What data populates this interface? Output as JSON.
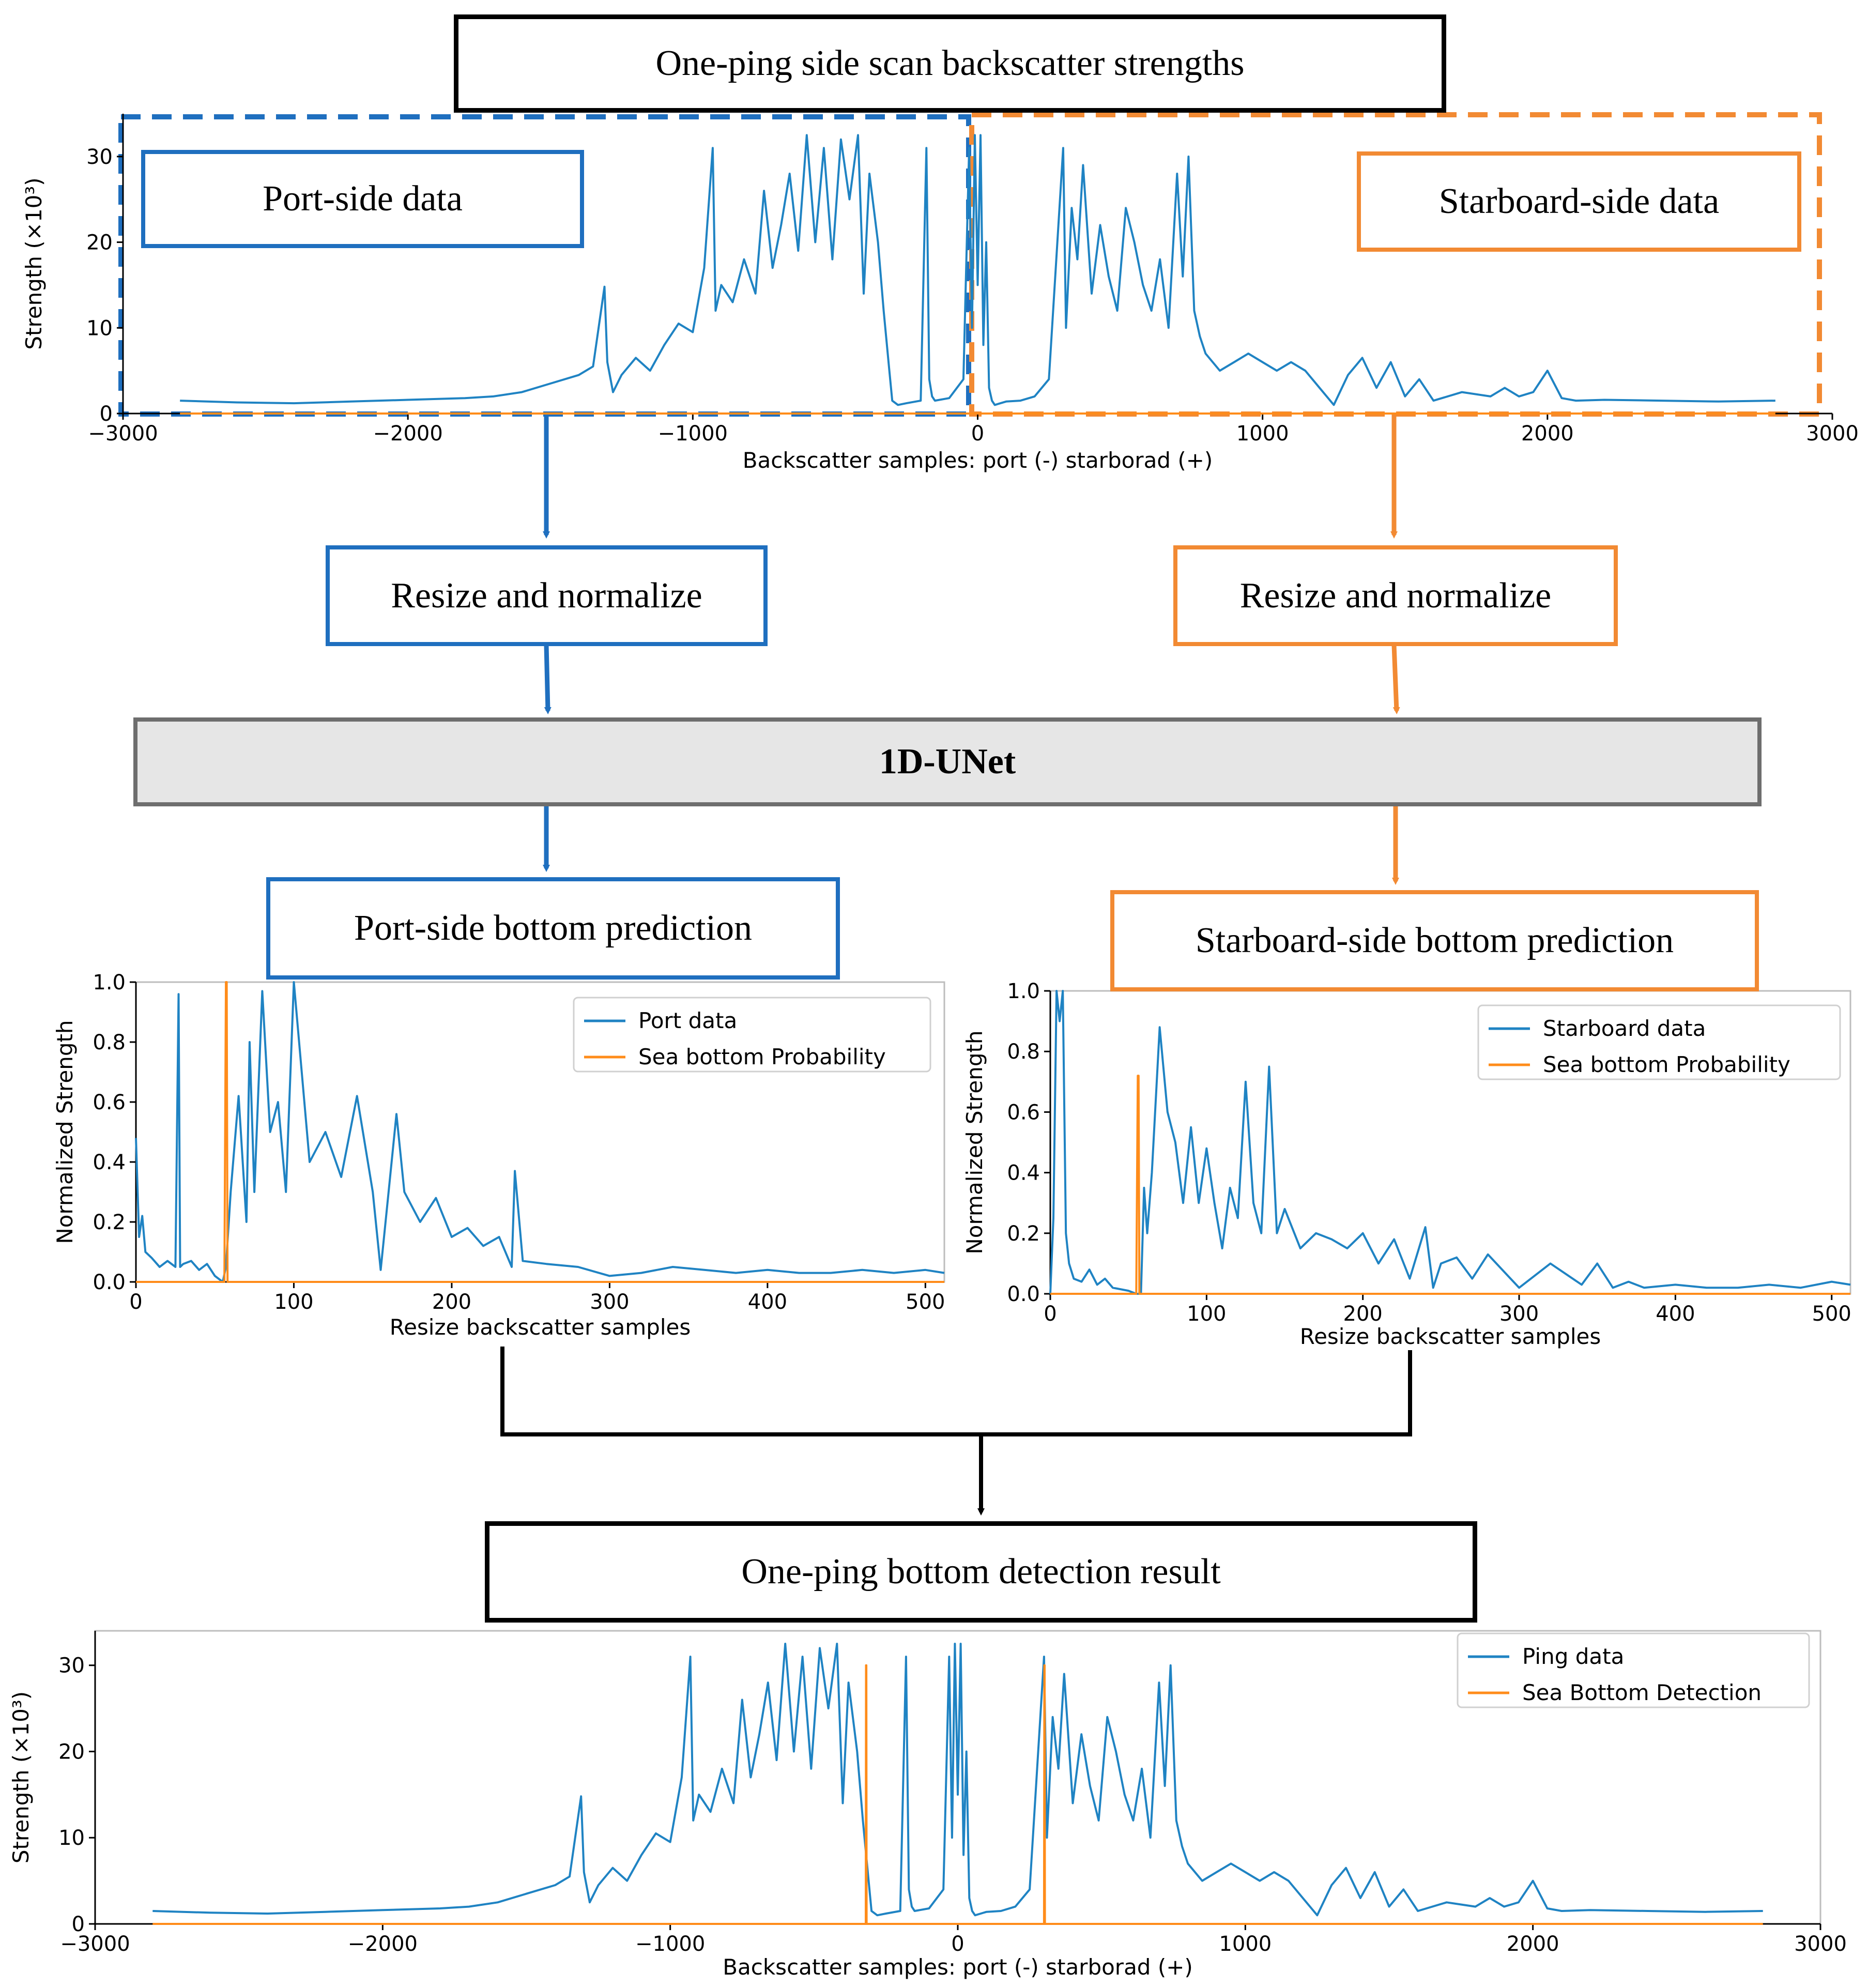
{
  "colors": {
    "port": "#1f6fbf",
    "starboard": "#f28a33",
    "data_line": "#1f83c3",
    "prob_line": "#ff8c1a",
    "unet_fill": "#e6e6e6",
    "unet_border": "#6e6e6e"
  },
  "flow": {
    "top_title": "One-ping side scan backscatter strengths",
    "port_side_data": "Port-side data",
    "starboard_side_data": "Starboard-side data",
    "resize_port": "Resize and normalize",
    "resize_starboard": "Resize and normalize",
    "unet": "1D-UNet",
    "port_prediction": "Port-side bottom prediction",
    "starboard_prediction": "Starboard-side bottom prediction",
    "result_title": "One-ping bottom detection result"
  },
  "chart_data": [
    {
      "id": "top",
      "type": "line",
      "title": "One-ping side scan backscatter strengths",
      "xlabel": "Backscatter samples: port (-) starborad (+)",
      "ylabel": "Strength (×10³)",
      "xlim": [
        -3000,
        3000
      ],
      "ylim": [
        0,
        35
      ],
      "xticks": [
        -3000,
        -2000,
        -1000,
        0,
        1000,
        2000,
        3000
      ],
      "xtick_labels": [
        "−3000",
        "−2000",
        "−1000",
        "0",
        "1000",
        "2000",
        "3000"
      ],
      "yticks": [
        0,
        10,
        20,
        30
      ],
      "ytick_labels": [
        "0",
        "10",
        "20",
        "30"
      ],
      "legend": [],
      "series": [
        {
          "name": "Ping data",
          "x": [
            -2800,
            -2600,
            -2400,
            -2200,
            -2000,
            -1800,
            -1700,
            -1600,
            -1500,
            -1400,
            -1350,
            -1310,
            -1300,
            -1280,
            -1250,
            -1200,
            -1150,
            -1100,
            -1050,
            -1000,
            -960,
            -930,
            -920,
            -900,
            -860,
            -820,
            -780,
            -750,
            -720,
            -690,
            -660,
            -630,
            -600,
            -570,
            -540,
            -510,
            -480,
            -450,
            -420,
            -400,
            -380,
            -350,
            -330,
            -310,
            -300,
            -280,
            -250,
            -200,
            -180,
            -170,
            -160,
            -150,
            -100,
            -50,
            -30,
            -20,
            -10,
            0,
            10,
            20,
            30,
            40,
            50,
            60,
            80,
            100,
            150,
            200,
            250,
            300,
            310,
            330,
            350,
            370,
            400,
            430,
            460,
            490,
            520,
            550,
            580,
            610,
            640,
            670,
            700,
            720,
            740,
            760,
            780,
            800,
            850,
            900,
            950,
            1000,
            1050,
            1100,
            1150,
            1200,
            1250,
            1300,
            1350,
            1400,
            1450,
            1500,
            1550,
            1600,
            1700,
            1800,
            1850,
            1900,
            1950,
            2000,
            2050,
            2100,
            2200,
            2400,
            2600,
            2800
          ],
          "y": [
            1.5,
            1.3,
            1.2,
            1.4,
            1.6,
            1.8,
            2.0,
            2.5,
            3.5,
            4.5,
            5.5,
            14.8,
            6.0,
            2.5,
            4.5,
            6.5,
            5.0,
            8.0,
            10.5,
            9.5,
            17.0,
            31.0,
            12.0,
            15.0,
            13.0,
            18.0,
            14.0,
            26.0,
            17.0,
            22.0,
            28.0,
            19.0,
            32.5,
            20.0,
            31.0,
            18.0,
            32.0,
            25.0,
            32.5,
            14.0,
            28.0,
            20.0,
            12.0,
            5.0,
            1.5,
            1.0,
            1.2,
            1.5,
            31.0,
            4.0,
            2.0,
            1.5,
            1.8,
            4.0,
            31.0,
            10.0,
            32.5,
            15.0,
            32.5,
            8.0,
            20.0,
            3.0,
            1.5,
            1.0,
            1.2,
            1.4,
            1.5,
            2.0,
            4.0,
            31.0,
            10.0,
            24.0,
            18.0,
            29.0,
            14.0,
            22.0,
            16.0,
            12.0,
            24.0,
            20.0,
            15.0,
            12.0,
            18.0,
            10.0,
            28.0,
            16.0,
            30.0,
            12.0,
            9.0,
            7.0,
            5.0,
            6.0,
            7.0,
            6.0,
            5.0,
            6.0,
            5.0,
            3.0,
            1.0,
            4.5,
            6.5,
            3.0,
            6.0,
            2.0,
            4.0,
            1.5,
            2.5,
            2.0,
            3.0,
            2.0,
            2.5,
            5.0,
            1.8,
            1.5,
            1.6,
            1.5,
            1.4,
            1.5
          ]
        },
        {
          "name": "Sea Bottom Detection",
          "x": [
            -2800,
            2800
          ],
          "y": [
            0,
            0
          ]
        }
      ]
    },
    {
      "id": "port",
      "type": "line",
      "title": "Port-side bottom prediction",
      "xlabel": "Resize backscatter samples",
      "ylabel": "Normalized Strength",
      "xlim": [
        0,
        512
      ],
      "ylim": [
        0,
        1
      ],
      "xticks": [
        0,
        100,
        200,
        300,
        400,
        500
      ],
      "xtick_labels": [
        "0",
        "100",
        "200",
        "300",
        "400",
        "500"
      ],
      "yticks": [
        0,
        0.2,
        0.4,
        0.6,
        0.8,
        1.0
      ],
      "ytick_labels": [
        "0.0",
        "0.2",
        "0.4",
        "0.6",
        "0.8",
        "1.0"
      ],
      "legend": [
        "Port data",
        "Sea bottom Probability"
      ],
      "series": [
        {
          "name": "Port data",
          "x": [
            0,
            2,
            4,
            6,
            10,
            15,
            20,
            25,
            27,
            28,
            30,
            35,
            40,
            45,
            50,
            55,
            57,
            60,
            65,
            70,
            72,
            75,
            80,
            85,
            90,
            95,
            100,
            110,
            120,
            130,
            140,
            150,
            155,
            160,
            165,
            170,
            180,
            190,
            200,
            210,
            220,
            230,
            238,
            240,
            245,
            260,
            280,
            300,
            320,
            340,
            360,
            380,
            400,
            420,
            440,
            460,
            480,
            500,
            512
          ],
          "y": [
            0.48,
            0.15,
            0.22,
            0.1,
            0.08,
            0.05,
            0.07,
            0.05,
            0.96,
            0.05,
            0.06,
            0.07,
            0.04,
            0.06,
            0.02,
            0.0,
            0.05,
            0.3,
            0.62,
            0.2,
            0.8,
            0.3,
            0.97,
            0.5,
            0.6,
            0.3,
            1.0,
            0.4,
            0.5,
            0.35,
            0.62,
            0.3,
            0.04,
            0.3,
            0.56,
            0.3,
            0.2,
            0.28,
            0.15,
            0.18,
            0.12,
            0.15,
            0.05,
            0.37,
            0.07,
            0.06,
            0.05,
            0.02,
            0.03,
            0.05,
            0.04,
            0.03,
            0.04,
            0.03,
            0.03,
            0.04,
            0.03,
            0.04,
            0.03
          ]
        },
        {
          "name": "Sea bottom Probability",
          "x": [
            0,
            56,
            57,
            57.5,
            58,
            512
          ],
          "y": [
            0,
            0,
            1.0,
            1.0,
            0,
            0
          ]
        }
      ]
    },
    {
      "id": "starboard",
      "type": "line",
      "title": "Starboard-side bottom prediction",
      "xlabel": "Resize backscatter samples",
      "ylabel": "Normalized Strength",
      "xlim": [
        0,
        512
      ],
      "ylim": [
        0,
        1
      ],
      "xticks": [
        0,
        100,
        200,
        300,
        400,
        500
      ],
      "xtick_labels": [
        "0",
        "100",
        "200",
        "300",
        "400",
        "500"
      ],
      "yticks": [
        0,
        0.2,
        0.4,
        0.6,
        0.8,
        1.0
      ],
      "ytick_labels": [
        "0.0",
        "0.2",
        "0.4",
        "0.6",
        "0.8",
        "1.0"
      ],
      "legend": [
        "Starboard data",
        "Sea bottom Probability"
      ],
      "series": [
        {
          "name": "Starboard data",
          "x": [
            0,
            2,
            4,
            6,
            8,
            10,
            12,
            15,
            20,
            25,
            30,
            35,
            40,
            50,
            55,
            58,
            60,
            62,
            65,
            70,
            75,
            80,
            85,
            90,
            95,
            100,
            105,
            110,
            115,
            120,
            125,
            130,
            135,
            140,
            145,
            150,
            160,
            170,
            180,
            190,
            200,
            210,
            220,
            230,
            240,
            245,
            250,
            260,
            270,
            280,
            300,
            320,
            340,
            350,
            360,
            370,
            380,
            400,
            420,
            440,
            460,
            480,
            500,
            512
          ],
          "y": [
            0.0,
            0.25,
            1.0,
            0.9,
            1.0,
            0.2,
            0.1,
            0.05,
            0.04,
            0.08,
            0.03,
            0.05,
            0.02,
            0.01,
            0.0,
            0.0,
            0.35,
            0.2,
            0.4,
            0.88,
            0.6,
            0.5,
            0.3,
            0.55,
            0.3,
            0.48,
            0.3,
            0.15,
            0.35,
            0.25,
            0.7,
            0.3,
            0.2,
            0.75,
            0.2,
            0.28,
            0.15,
            0.2,
            0.18,
            0.15,
            0.2,
            0.1,
            0.18,
            0.05,
            0.22,
            0.02,
            0.1,
            0.12,
            0.05,
            0.13,
            0.02,
            0.1,
            0.03,
            0.1,
            0.02,
            0.04,
            0.02,
            0.03,
            0.02,
            0.02,
            0.03,
            0.02,
            0.04,
            0.03
          ]
        },
        {
          "name": "Sea bottom Probability",
          "x": [
            0,
            55,
            56,
            56.5,
            57,
            512
          ],
          "y": [
            0,
            0,
            0.72,
            0.72,
            0,
            0
          ]
        }
      ]
    },
    {
      "id": "result",
      "type": "line",
      "title": "One-ping bottom detection result",
      "xlabel": "Backscatter samples: port (-) starborad (+)",
      "ylabel": "Strength (×10³)",
      "xlim": [
        -3000,
        3000
      ],
      "ylim": [
        0,
        34
      ],
      "xticks": [
        -3000,
        -2000,
        -1000,
        0,
        1000,
        2000,
        3000
      ],
      "xtick_labels": [
        "−3000",
        "−2000",
        "−1000",
        "0",
        "1000",
        "2000",
        "3000"
      ],
      "yticks": [
        0,
        10,
        20,
        30
      ],
      "ytick_labels": [
        "0",
        "10",
        "20",
        "30"
      ],
      "legend": [
        "Ping data",
        "Sea Bottom Detection"
      ],
      "series": [
        {
          "name": "Ping data",
          "x": [
            -2800,
            -2600,
            -2400,
            -2200,
            -2000,
            -1800,
            -1700,
            -1600,
            -1500,
            -1400,
            -1350,
            -1310,
            -1300,
            -1280,
            -1250,
            -1200,
            -1150,
            -1100,
            -1050,
            -1000,
            -960,
            -930,
            -920,
            -900,
            -860,
            -820,
            -780,
            -750,
            -720,
            -690,
            -660,
            -630,
            -600,
            -570,
            -540,
            -510,
            -480,
            -450,
            -420,
            -400,
            -380,
            -350,
            -330,
            -310,
            -300,
            -280,
            -250,
            -200,
            -180,
            -170,
            -160,
            -150,
            -100,
            -50,
            -30,
            -20,
            -10,
            0,
            10,
            20,
            30,
            40,
            50,
            60,
            80,
            100,
            150,
            200,
            250,
            300,
            310,
            330,
            350,
            370,
            400,
            430,
            460,
            490,
            520,
            550,
            580,
            610,
            640,
            670,
            700,
            720,
            740,
            760,
            780,
            800,
            850,
            900,
            950,
            1000,
            1050,
            1100,
            1150,
            1200,
            1250,
            1300,
            1350,
            1400,
            1450,
            1500,
            1550,
            1600,
            1700,
            1800,
            1850,
            1900,
            1950,
            2000,
            2050,
            2100,
            2200,
            2400,
            2600,
            2800
          ],
          "y": [
            1.5,
            1.3,
            1.2,
            1.4,
            1.6,
            1.8,
            2.0,
            2.5,
            3.5,
            4.5,
            5.5,
            14.8,
            6.0,
            2.5,
            4.5,
            6.5,
            5.0,
            8.0,
            10.5,
            9.5,
            17.0,
            31.0,
            12.0,
            15.0,
            13.0,
            18.0,
            14.0,
            26.0,
            17.0,
            22.0,
            28.0,
            19.0,
            32.5,
            20.0,
            31.0,
            18.0,
            32.0,
            25.0,
            32.5,
            14.0,
            28.0,
            20.0,
            12.0,
            5.0,
            1.5,
            1.0,
            1.2,
            1.5,
            31.0,
            4.0,
            2.0,
            1.5,
            1.8,
            4.0,
            31.0,
            10.0,
            32.5,
            15.0,
            32.5,
            8.0,
            20.0,
            3.0,
            1.5,
            1.0,
            1.2,
            1.4,
            1.5,
            2.0,
            4.0,
            31.0,
            10.0,
            24.0,
            18.0,
            29.0,
            14.0,
            22.0,
            16.0,
            12.0,
            24.0,
            20.0,
            15.0,
            12.0,
            18.0,
            10.0,
            28.0,
            16.0,
            30.0,
            12.0,
            9.0,
            7.0,
            5.0,
            6.0,
            7.0,
            6.0,
            5.0,
            6.0,
            5.0,
            3.0,
            1.0,
            4.5,
            6.5,
            3.0,
            6.0,
            2.0,
            4.0,
            1.5,
            2.5,
            2.0,
            3.0,
            2.0,
            2.5,
            5.0,
            1.8,
            1.5,
            1.6,
            1.5,
            1.4,
            1.5
          ]
        },
        {
          "name": "Sea Bottom Detection",
          "x": [
            -2800,
            -320,
            -319,
            -318,
            -317,
            300,
            301,
            302,
            303,
            2800
          ],
          "y": [
            0,
            0,
            30,
            30,
            0,
            0,
            30,
            30,
            0,
            0
          ]
        }
      ]
    }
  ]
}
